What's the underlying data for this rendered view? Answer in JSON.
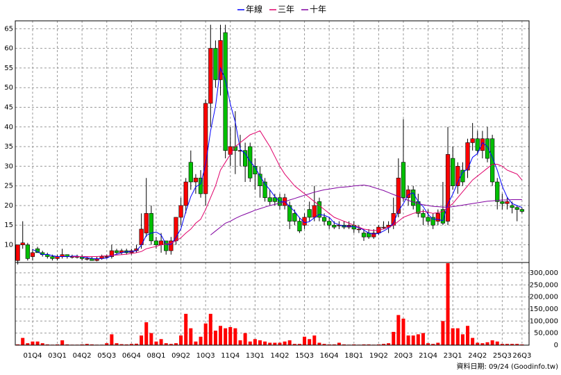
{
  "chart_data": {
    "type": "candlestick",
    "legend_position": "top",
    "grid": true,
    "up_color": "#ff0000",
    "down_color": "#00c000",
    "categories": [
      null,
      null,
      null,
      "01Q4",
      null,
      null,
      null,
      null,
      "03Q1",
      null,
      null,
      null,
      null,
      "04Q2",
      null,
      null,
      null,
      null,
      "05Q3",
      null,
      null,
      null,
      null,
      "06Q4",
      null,
      null,
      null,
      null,
      "08Q1",
      null,
      null,
      null,
      null,
      "09Q2",
      null,
      null,
      null,
      null,
      "10Q3",
      null,
      null,
      null,
      null,
      "11Q4",
      null,
      null,
      null,
      null,
      "13Q1",
      null,
      null,
      null,
      null,
      "14Q2",
      null,
      null,
      null,
      null,
      "15Q3",
      null,
      null,
      null,
      null,
      "16Q4",
      null,
      null,
      null,
      null,
      "18Q1",
      null,
      null,
      null,
      null,
      "19Q2",
      null,
      null,
      null,
      null,
      "20Q3",
      null,
      null,
      null,
      null,
      "21Q4",
      null,
      null,
      null,
      null,
      "23Q1",
      null,
      null,
      null,
      null,
      "24Q2",
      null,
      null,
      null,
      null,
      "25Q3",
      null,
      null,
      null,
      "26Q3"
    ],
    "ohlc": [
      [
        6,
        10,
        5,
        10
      ],
      [
        10,
        16,
        9,
        10.5
      ],
      [
        10,
        10.5,
        6,
        6.5
      ],
      [
        7,
        9,
        6,
        8
      ],
      [
        9,
        9.5,
        8,
        8
      ],
      [
        8,
        8.5,
        7,
        7.5
      ],
      [
        7.5,
        8,
        6.5,
        7
      ],
      [
        7,
        7.5,
        6,
        6.5
      ],
      [
        6.5,
        7.5,
        6,
        7
      ],
      [
        7,
        9,
        6.5,
        7.5
      ],
      [
        7.5,
        7.5,
        6.5,
        7
      ],
      [
        7,
        7.5,
        6.5,
        7
      ],
      [
        7,
        7.5,
        6.5,
        7
      ],
      [
        7,
        7.5,
        6,
        6.5
      ],
      [
        6.5,
        7,
        6,
        6.5
      ],
      [
        6.5,
        7,
        6,
        6
      ],
      [
        6,
        7,
        5.8,
        6.5
      ],
      [
        6.5,
        7.5,
        6.2,
        7
      ],
      [
        7,
        7.5,
        6.5,
        7
      ],
      [
        7,
        10,
        6.5,
        8.5
      ],
      [
        8.5,
        9,
        7.5,
        8
      ],
      [
        8,
        9,
        7.5,
        8.5
      ],
      [
        8.5,
        9,
        7.5,
        8
      ],
      [
        8,
        9,
        7.5,
        8.5
      ],
      [
        8.5,
        10,
        8,
        9
      ],
      [
        10,
        18,
        9,
        14
      ],
      [
        13,
        27,
        12,
        18
      ],
      [
        18,
        20,
        10,
        11
      ],
      [
        11,
        12,
        9,
        10
      ],
      [
        10,
        13,
        8,
        11
      ],
      [
        11,
        11,
        7.5,
        8.5
      ],
      [
        8.5,
        12,
        7.5,
        11
      ],
      [
        11,
        17,
        10,
        17
      ],
      [
        17,
        22,
        15,
        20
      ],
      [
        20,
        27,
        18,
        26
      ],
      [
        31,
        34,
        24,
        26
      ],
      [
        26,
        28,
        23,
        27
      ],
      [
        27,
        29,
        22,
        23
      ],
      [
        23,
        47,
        20,
        46
      ],
      [
        46,
        66,
        40,
        60
      ],
      [
        60,
        62,
        50,
        52
      ],
      [
        52,
        66,
        48,
        62
      ],
      [
        64,
        66,
        32,
        34
      ],
      [
        33,
        40,
        30,
        35
      ],
      [
        35,
        44,
        28,
        34
      ],
      [
        34,
        38,
        30,
        34
      ],
      [
        34,
        36,
        26,
        30
      ],
      [
        35,
        36,
        26,
        27
      ],
      [
        30,
        32,
        24,
        28
      ],
      [
        28,
        30,
        22,
        25
      ],
      [
        26,
        27,
        21,
        22
      ],
      [
        22,
        24,
        20,
        21
      ],
      [
        22,
        23,
        20,
        21
      ],
      [
        22,
        23,
        19,
        20
      ],
      [
        20,
        23,
        19,
        22
      ],
      [
        20,
        21,
        14,
        16
      ],
      [
        18,
        19,
        15,
        16
      ],
      [
        16,
        17,
        13,
        13.5
      ],
      [
        15,
        18,
        14,
        17
      ],
      [
        19,
        21,
        16,
        17
      ],
      [
        17,
        25,
        16,
        20
      ],
      [
        21,
        22,
        16,
        17
      ],
      [
        17,
        18,
        15,
        16
      ],
      [
        16,
        17,
        14,
        15
      ],
      [
        15,
        16,
        14,
        14.5
      ],
      [
        15,
        16,
        14,
        15
      ],
      [
        15,
        16,
        14,
        14.5
      ],
      [
        14.5,
        16,
        14,
        15
      ],
      [
        15,
        16,
        13,
        14
      ],
      [
        14,
        15,
        13,
        14
      ],
      [
        13,
        14,
        11,
        12
      ],
      [
        13,
        14,
        11.5,
        12
      ],
      [
        12,
        14,
        11.5,
        13
      ],
      [
        13,
        15,
        12.5,
        14.5
      ],
      [
        14.5,
        16,
        14,
        14.5
      ],
      [
        14.5,
        16,
        13,
        15
      ],
      [
        15,
        22,
        14,
        18
      ],
      [
        18,
        32,
        17,
        27
      ],
      [
        31,
        42,
        21,
        22
      ],
      [
        22,
        25,
        20,
        24
      ],
      [
        24,
        25,
        19,
        20
      ],
      [
        21,
        23,
        17,
        18
      ],
      [
        18,
        19,
        15,
        17
      ],
      [
        17,
        19,
        15,
        16
      ],
      [
        17,
        18,
        14,
        15
      ],
      [
        16,
        19,
        15,
        18
      ],
      [
        19,
        26,
        15,
        15.5
      ],
      [
        16,
        40,
        15,
        33
      ],
      [
        32,
        35,
        24,
        25
      ],
      [
        25,
        31,
        23,
        30
      ],
      [
        29,
        31,
        25,
        26
      ],
      [
        29,
        37,
        27,
        36
      ],
      [
        36,
        41,
        34,
        37
      ],
      [
        37,
        39,
        33,
        34
      ],
      [
        34,
        39,
        32,
        37
      ],
      [
        37,
        40,
        31,
        32
      ],
      [
        37,
        38,
        25,
        26
      ],
      [
        26,
        27,
        19,
        21
      ],
      [
        21,
        23,
        19,
        20.5
      ],
      [
        20.5,
        22,
        19,
        21
      ],
      [
        20,
        21,
        18,
        19.5
      ],
      [
        19.5,
        20,
        16,
        19
      ],
      [
        19,
        19.5,
        18,
        18.5
      ]
    ],
    "volume": {
      "color": "#ff0000",
      "values": [
        3000,
        30000,
        8000,
        15000,
        15000,
        8000,
        3000,
        2000,
        3000,
        20000,
        3000,
        2000,
        2000,
        3000,
        5000,
        3000,
        2000,
        2000,
        8000,
        45000,
        8000,
        4000,
        3000,
        5000,
        6000,
        40000,
        95000,
        50000,
        15000,
        25000,
        8000,
        5000,
        8000,
        40000,
        130000,
        70000,
        15000,
        35000,
        90000,
        130000,
        60000,
        80000,
        70000,
        75000,
        70000,
        20000,
        50000,
        15000,
        25000,
        20000,
        15000,
        10000,
        10000,
        10000,
        15000,
        20000,
        5000,
        5000,
        35000,
        25000,
        40000,
        10000,
        5000,
        3000,
        3000,
        10000,
        3000,
        2000,
        3000,
        2000,
        3000,
        3000,
        2000,
        3000,
        5000,
        8000,
        55000,
        125000,
        110000,
        40000,
        40000,
        45000,
        50000,
        8000,
        5000,
        10000,
        100000,
        340000,
        70000,
        70000,
        45000,
        80000,
        30000,
        10000,
        8000,
        12000,
        20000,
        15000,
        5000,
        5000,
        5000,
        5000,
        3000
      ]
    },
    "series": [
      {
        "name": "年線",
        "color": "#0000ff",
        "values": [
          null,
          null,
          null,
          8.8,
          8.25,
          7.5,
          7.6,
          7.25,
          7,
          7,
          7,
          7.1,
          7.1,
          6.9,
          6.75,
          6.5,
          6.4,
          6.5,
          6.6,
          7.25,
          7.6,
          8,
          8.25,
          8.25,
          8.5,
          9.9,
          12.4,
          13,
          13.25,
          12.5,
          10.1,
          10.1,
          11.9,
          14.1,
          18.5,
          22.25,
          24.75,
          25.5,
          30.5,
          39,
          45.25,
          55,
          52,
          45.75,
          41.25,
          34.25,
          33.25,
          31.25,
          29.75,
          27.5,
          25.5,
          24,
          22.25,
          21,
          21,
          19.75,
          18.5,
          16.9,
          15.6,
          15.9,
          16.9,
          17.75,
          17.5,
          17,
          15.6,
          15.1,
          14.75,
          14.75,
          14.6,
          14.4,
          13.75,
          13,
          12.75,
          12.9,
          13.5,
          14.25,
          15.5,
          18.6,
          20.5,
          22.75,
          23.25,
          21,
          19.75,
          17.75,
          16.5,
          16.5,
          16.1,
          20.4,
          22.9,
          25.9,
          28.5,
          29.25,
          32.25,
          33.25,
          36,
          35,
          32.25,
          29,
          24.9,
          22.1,
          20.5,
          20,
          19.5
        ]
      },
      {
        "name": "三年",
        "color": "#e0006a",
        "values": [
          null,
          null,
          null,
          null,
          null,
          null,
          null,
          null,
          null,
          null,
          null,
          7,
          7,
          7,
          7,
          7,
          7,
          7.1,
          7.2,
          7.3,
          7.4,
          7.5,
          7.6,
          7.8,
          8,
          8.3,
          9,
          9.3,
          9.6,
          10,
          10.2,
          10.4,
          11,
          11.8,
          13,
          14,
          15.5,
          16.5,
          19,
          22,
          25,
          29,
          31,
          33,
          35,
          36,
          37,
          38,
          38.5,
          39,
          37,
          35,
          32.5,
          30,
          28,
          26.5,
          25,
          24,
          23,
          22,
          21,
          20,
          19,
          18,
          17,
          16.5,
          16,
          15.5,
          15,
          14.5,
          14,
          13.8,
          13.6,
          13.8,
          14,
          14.5,
          15,
          16,
          17,
          17.5,
          18,
          18.3,
          18.5,
          18.3,
          18,
          18.2,
          18.5,
          19.5,
          20.5,
          22,
          23.5,
          25,
          26.5,
          27.5,
          28.5,
          29.5,
          30.5,
          30.5,
          30,
          29,
          28.5,
          28,
          26.5
        ]
      },
      {
        "name": "十年",
        "color": "#8000a0",
        "values": [
          null,
          null,
          null,
          null,
          null,
          null,
          null,
          null,
          null,
          null,
          null,
          null,
          null,
          null,
          null,
          null,
          null,
          null,
          null,
          null,
          null,
          null,
          null,
          null,
          null,
          null,
          null,
          null,
          null,
          null,
          null,
          null,
          null,
          null,
          null,
          null,
          null,
          null,
          null,
          12.5,
          13.5,
          14.5,
          15.5,
          16,
          16.7,
          17.3,
          17.8,
          18.3,
          18.8,
          19.2,
          19.6,
          20,
          20.3,
          20.6,
          21,
          21.4,
          21.8,
          22.2,
          22.6,
          23,
          23.4,
          23.7,
          24,
          24.2,
          24.4,
          24.6,
          24.7,
          24.8,
          25,
          25.1,
          25.2,
          25,
          24.6,
          24.2,
          23.8,
          23.3,
          22.8,
          22.3,
          21.8,
          21.3,
          20.9,
          20.5,
          20.2,
          20,
          19.8,
          19.7,
          19.6,
          19.6,
          19.7,
          19.9,
          20.1,
          20.3,
          20.5,
          20.7,
          20.9,
          21.1,
          21.2,
          21.3,
          21.4,
          21.4,
          21.5,
          21.5,
          21.5
        ]
      }
    ],
    "ylim": [
      5.5,
      67
    ],
    "yticks": [
      10,
      15,
      20,
      25,
      30,
      35,
      40,
      45,
      50,
      55,
      60,
      65
    ],
    "y2lim": [
      0,
      343000
    ],
    "y2ticks": [
      0,
      {
        "value": 50000,
        "label": "50,000"
      },
      {
        "value": 100000,
        "label": "100,000"
      },
      {
        "value": 150000,
        "label": "150,000"
      },
      {
        "value": 200000,
        "label": "200,000"
      },
      {
        "value": 250000,
        "label": "250,000"
      },
      {
        "value": 300000,
        "label": "300,000"
      }
    ]
  },
  "footer": "資料日期: 09/24 (Goodinfo.tw)"
}
